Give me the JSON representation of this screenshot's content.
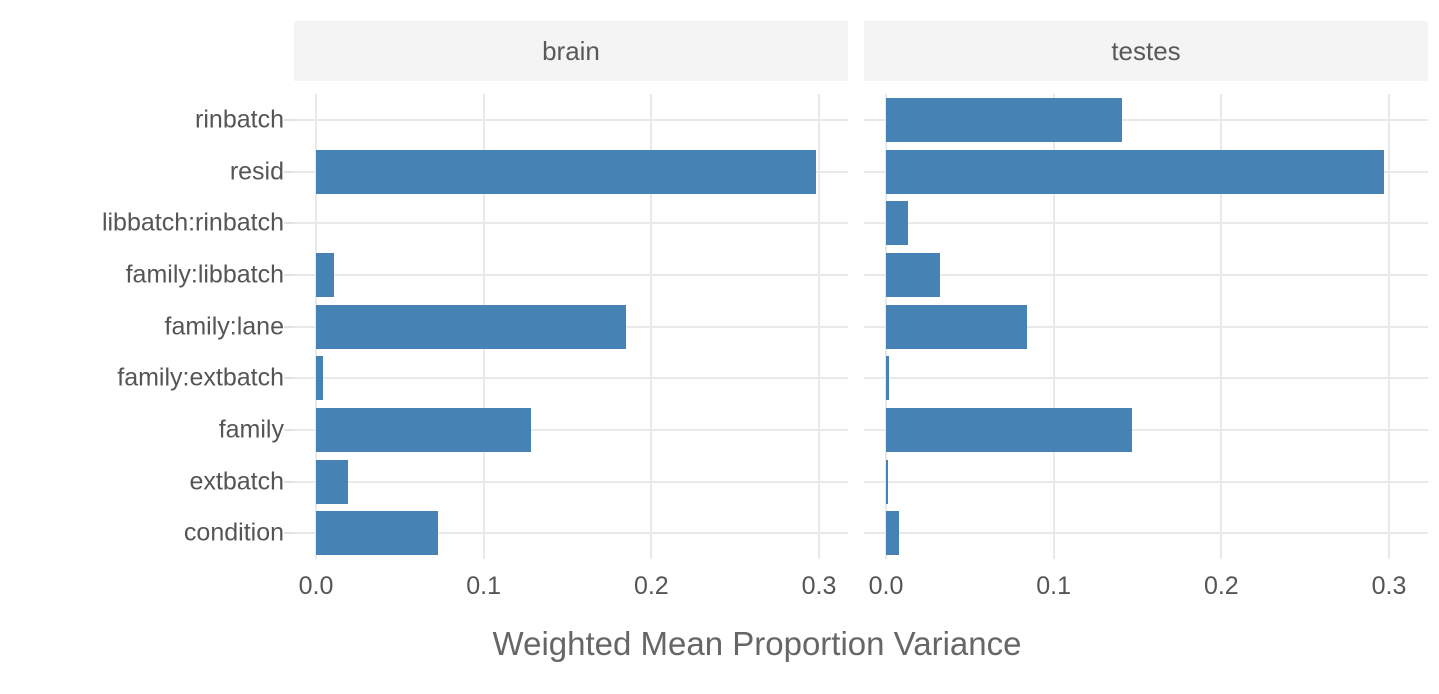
{
  "chart_data": {
    "type": "bar",
    "orientation": "horizontal",
    "title": "",
    "xlabel": "Weighted Mean Proportion Variance",
    "ylabel": "",
    "categories_top_to_bottom": [
      "rinbatch",
      "resid",
      "libbatch:rinbatch",
      "family:libbatch",
      "family:lane",
      "family:extbatch",
      "family",
      "extbatch",
      "condition"
    ],
    "facets": [
      {
        "label": "brain",
        "values": [
          0.0,
          0.298,
          0.0,
          0.011,
          0.185,
          0.004,
          0.128,
          0.019,
          0.073
        ]
      },
      {
        "label": "testes",
        "values": [
          0.141,
          0.297,
          0.013,
          0.032,
          0.084,
          0.002,
          0.147,
          0.001,
          0.008
        ]
      }
    ],
    "x_ticks": [
      "0.0",
      "0.1",
      "0.2",
      "0.3"
    ],
    "x_tick_values": [
      0.0,
      0.1,
      0.2,
      0.3
    ],
    "xlim": [
      0,
      0.32
    ],
    "grid": true,
    "legend": "none",
    "colors": {
      "bar": "#4682b4",
      "gridline": "#e9e9e9",
      "strip_background": "#f4f4f4",
      "strip_text": "#595959",
      "axis_text": "#555555",
      "axis_title_text": "#666666"
    }
  }
}
